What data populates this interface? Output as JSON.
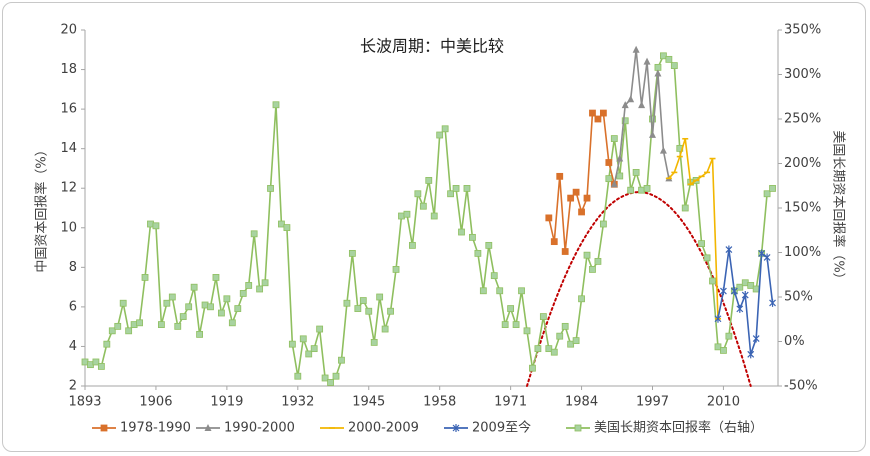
{
  "chart_data": {
    "type": "line",
    "title": "长波周期：中美比较",
    "ylabel": "中国资本回报率（%）",
    "y2label": "美国长期资本回报率（%）",
    "xlim": [
      1893,
      2020
    ],
    "xticks": [
      1893,
      1906,
      1919,
      1932,
      1945,
      1958,
      1971,
      1984,
      1997,
      2010
    ],
    "ylim": [
      2,
      20
    ],
    "yticks": [
      2,
      4,
      6,
      8,
      10,
      12,
      14,
      16,
      18,
      20
    ],
    "y2lim": [
      -50,
      350
    ],
    "y2ticks": [
      {
        "value": -50,
        "label": "-50%"
      },
      {
        "value": 0,
        "label": "0%"
      },
      {
        "value": 50,
        "label": "50%"
      },
      {
        "value": 100,
        "label": "100%"
      },
      {
        "value": 150,
        "label": "150%"
      },
      {
        "value": 200,
        "label": "200%"
      },
      {
        "value": 250,
        "label": "250%"
      },
      {
        "value": 300,
        "label": "300%"
      },
      {
        "value": 350,
        "label": "350%"
      }
    ],
    "series": [
      {
        "name": "1978-1990",
        "color": "#d9712b",
        "marker": "square",
        "axis": "y",
        "x": [
          1978,
          1979,
          1980,
          1981,
          1982,
          1983,
          1984,
          1985,
          1986,
          1987,
          1988,
          1989,
          1990
        ],
        "values": [
          10.5,
          9.3,
          12.6,
          8.8,
          11.5,
          11.8,
          10.8,
          11.5,
          15.8,
          15.5,
          15.8,
          13.3,
          12.2
        ]
      },
      {
        "name": "1990-2000",
        "color": "#8c8c8c",
        "marker": "triangle",
        "axis": "y",
        "x": [
          1990,
          1991,
          1992,
          1993,
          1994,
          1995,
          1996,
          1997,
          1998,
          1999,
          2000
        ],
        "values": [
          12.2,
          13.5,
          16.2,
          16.5,
          19.0,
          16.2,
          18.4,
          14.7,
          17.8,
          13.9,
          12.5
        ]
      },
      {
        "name": "2000-2009",
        "color": "#f2b600",
        "marker": "dash",
        "axis": "y",
        "x": [
          2000,
          2001,
          2002,
          2003,
          2004,
          2005,
          2006,
          2007,
          2008,
          2009
        ],
        "values": [
          12.5,
          12.8,
          13.6,
          14.5,
          12.2,
          12.4,
          12.6,
          12.8,
          13.5,
          5.4
        ]
      },
      {
        "name": "2009至今",
        "color": "#3b64b4",
        "marker": "star",
        "axis": "y",
        "x": [
          2009,
          2010,
          2011,
          2012,
          2013,
          2014,
          2015,
          2016,
          2017,
          2018,
          2019
        ],
        "values": [
          5.4,
          6.8,
          8.9,
          6.8,
          5.9,
          6.6,
          3.6,
          4.4,
          8.7,
          8.5,
          6.2
        ]
      },
      {
        "name": "美国长期资本回报率（右轴）",
        "color": "#8fbf5f",
        "marker": "square",
        "axis": "y2",
        "x": [
          1893,
          1894,
          1895,
          1896,
          1897,
          1898,
          1899,
          1900,
          1901,
          1902,
          1903,
          1904,
          1905,
          1906,
          1907,
          1908,
          1909,
          1910,
          1911,
          1912,
          1913,
          1914,
          1915,
          1916,
          1917,
          1918,
          1919,
          1920,
          1921,
          1922,
          1923,
          1924,
          1925,
          1926,
          1927,
          1928,
          1929,
          1930,
          1931,
          1932,
          1933,
          1934,
          1935,
          1936,
          1937,
          1938,
          1939,
          1940,
          1941,
          1942,
          1943,
          1944,
          1945,
          1946,
          1947,
          1948,
          1949,
          1950,
          1951,
          1952,
          1953,
          1954,
          1955,
          1956,
          1957,
          1958,
          1959,
          1960,
          1961,
          1962,
          1963,
          1964,
          1965,
          1966,
          1967,
          1968,
          1969,
          1970,
          1971,
          1972,
          1973,
          1974,
          1975,
          1976,
          1977,
          1978,
          1979,
          1980,
          1981,
          1982,
          1983,
          1984,
          1985,
          1986,
          1987,
          1988,
          1989,
          1990,
          1991,
          1992,
          1993,
          1994,
          1995,
          1996,
          1997,
          1998,
          1999,
          2000,
          2001,
          2002,
          2003,
          2004,
          2005,
          2006,
          2007,
          2008,
          2009,
          2010,
          2011,
          2012,
          2013,
          2014,
          2015,
          2016,
          2017,
          2018,
          2019
        ],
        "values": [
          -23,
          -26,
          -23,
          -28,
          -3,
          12,
          17,
          43,
          12,
          19,
          21,
          72,
          132,
          130,
          19,
          43,
          50,
          17,
          28,
          39,
          61,
          8,
          41,
          39,
          72,
          32,
          48,
          21,
          37,
          54,
          63,
          121,
          59,
          66,
          172,
          266,
          132,
          128,
          -3,
          -39,
          3,
          -14,
          -8,
          14,
          -41,
          -46,
          -39,
          -21,
          43,
          99,
          37,
          46,
          34,
          -1,
          50,
          14,
          34,
          81,
          141,
          143,
          108,
          166,
          152,
          181,
          141,
          232,
          239,
          166,
          172,
          123,
          172,
          117,
          99,
          57,
          108,
          74,
          57,
          19,
          37,
          19,
          57,
          12,
          -30,
          -8,
          28,
          -8,
          -12,
          6,
          17,
          -3,
          1,
          48,
          97,
          81,
          90,
          132,
          183,
          228,
          186,
          248,
          170,
          190,
          170,
          172,
          250,
          308,
          321,
          317,
          310,
          217,
          150,
          179,
          181,
          110,
          94,
          68,
          -6,
          -10,
          6,
          57,
          61,
          66,
          63,
          59,
          99,
          166,
          172
        ]
      }
    ],
    "trend": {
      "color": "#c00000",
      "style": "dotted",
      "axis": "y",
      "x": [
        1974,
        1977,
        1980,
        1983,
        1986,
        1989,
        1992,
        1995,
        1998,
        2001,
        2004,
        2007,
        2010,
        2013,
        2015
      ],
      "values": [
        2.0,
        4.66,
        6.9,
        8.72,
        10.11,
        11.1,
        11.65,
        11.8,
        11.51,
        10.82,
        9.7,
        8.16,
        6.2,
        3.82,
        2.0
      ]
    }
  }
}
